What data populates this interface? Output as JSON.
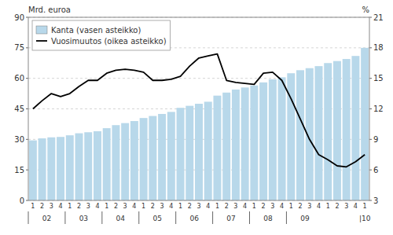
{
  "chart_data": {
    "type": "bar",
    "y_label": "Mrd. euroa",
    "y2_label": "%",
    "categories": [
      "1",
      "2",
      "3",
      "4",
      "1",
      "2",
      "3",
      "4",
      "1",
      "2",
      "3",
      "4",
      "1",
      "2",
      "3",
      "4",
      "1",
      "2",
      "3",
      "4",
      "1",
      "2",
      "3",
      "4",
      "1",
      "2",
      "3",
      "4",
      "1",
      "2",
      "3",
      "4",
      "1",
      "2",
      "3",
      "4",
      "1"
    ],
    "series": [
      {
        "name": "Kanta (vasen asteikko)",
        "type": "bar",
        "color": "#b8d8ea",
        "values": [
          29.5,
          30.5,
          31.0,
          31.2,
          32.0,
          33.0,
          33.5,
          34.0,
          35.5,
          37.0,
          38.0,
          39.0,
          40.5,
          41.5,
          42.5,
          43.5,
          45.5,
          46.5,
          47.5,
          48.5,
          51.5,
          53.0,
          54.5,
          55.5,
          56.5,
          58.0,
          59.5,
          60.5,
          62.5,
          64.0,
          65.0,
          66.0,
          67.5,
          68.5,
          69.5,
          71.0,
          75.0
        ]
      },
      {
        "name": "Vuosimuutos (oikea asteikko)",
        "type": "line",
        "color": "#000000",
        "axis": "y2",
        "values": [
          12.0,
          12.8,
          13.5,
          13.2,
          13.5,
          14.2,
          14.8,
          14.8,
          15.5,
          15.8,
          15.9,
          15.8,
          15.6,
          14.8,
          14.8,
          14.9,
          15.2,
          16.2,
          17.0,
          17.2,
          17.4,
          14.8,
          14.6,
          14.5,
          14.4,
          15.5,
          15.6,
          14.8,
          13.0,
          11.0,
          9.0,
          7.5,
          7.0,
          6.4,
          6.3,
          6.8,
          7.5
        ]
      }
    ],
    "ylim": [
      0,
      90
    ],
    "yticks": [
      0,
      15,
      30,
      45,
      60,
      75,
      90
    ],
    "y2lim": [
      3,
      21
    ],
    "y2ticks": [
      3,
      6,
      9,
      12,
      15,
      18,
      21
    ],
    "grid": true,
    "legend": "upper left",
    "annotations": [
      {
        "text": "02",
        "from": 0,
        "to": 3
      },
      {
        "text": "03",
        "from": 4,
        "to": 7
      },
      {
        "text": "04",
        "from": 8,
        "to": 11
      },
      {
        "text": "05",
        "from": 12,
        "to": 15
      },
      {
        "text": "06",
        "from": 16,
        "to": 19
      },
      {
        "text": "07",
        "from": 20,
        "to": 23
      },
      {
        "text": "08",
        "from": 24,
        "to": 27
      },
      {
        "text": "09",
        "from": 28,
        "to": 31
      },
      {
        "text": "|10",
        "from": 36,
        "to": 36
      }
    ]
  }
}
